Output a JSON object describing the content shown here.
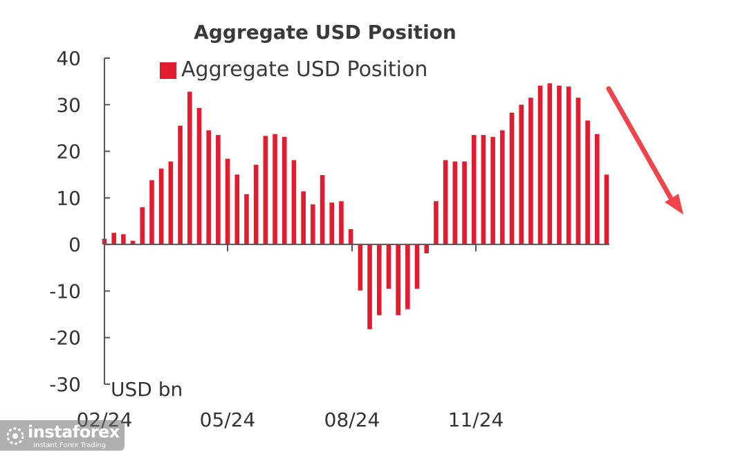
{
  "chart_data": {
    "type": "bar",
    "title": "Aggregate USD Position",
    "legend": {
      "entries": [
        "Aggregate USD Position"
      ],
      "placement": "top"
    },
    "ylabel": "USD bn",
    "ylim": [
      -30,
      40
    ],
    "yticks": [
      "40",
      "30",
      "20",
      "10",
      "0",
      "-10",
      "-20",
      "-30"
    ],
    "xticks": [
      "02/24",
      "05/24",
      "08/24",
      "11/24"
    ],
    "grid": false,
    "color": "#e31b2f",
    "series": [
      {
        "name": "Aggregate USD Position",
        "values": [
          1.2,
          2.5,
          2.2,
          0.8,
          8,
          13.8,
          16.3,
          17.8,
          25.5,
          32.8,
          29.3,
          24.5,
          23.5,
          18.4,
          15,
          10.8,
          17.1,
          23.3,
          23.7,
          23.1,
          18.1,
          11.4,
          8.6,
          14.9,
          9,
          9.3,
          3.3,
          -9.9,
          -18.2,
          -15.2,
          -9.5,
          -15.2,
          -13.9,
          -9.5,
          -1.9,
          9.3,
          18.1,
          17.8,
          17.8,
          23.5,
          23.5,
          23.1,
          24.5,
          28.3,
          30,
          31.5,
          34.1,
          34.6,
          34.1,
          33.9,
          31.5,
          26.6,
          23.7,
          15
        ]
      }
    ]
  },
  "annotation": {
    "type": "downward-trend-arrow",
    "color": "#f0444d"
  },
  "watermark": {
    "brand": "instaforex",
    "tagline": "Instant Forex Trading"
  }
}
